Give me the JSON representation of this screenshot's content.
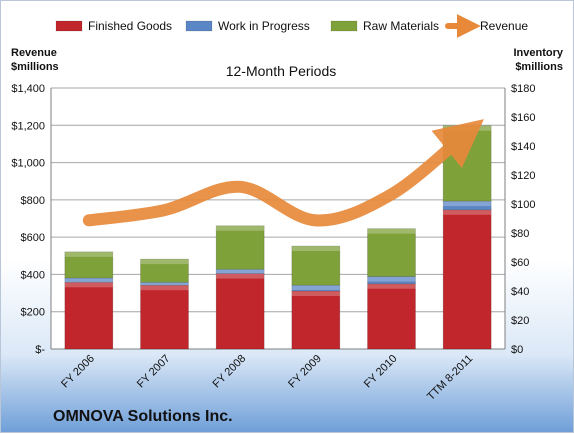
{
  "chart_data": {
    "type": "bar",
    "title": "12-Month Periods",
    "subtitle": "OMNOVA Solutions Inc.",
    "categories": [
      "FY 2006",
      "FY 2007",
      "FY 2008",
      "FY 2009",
      "FY 2010",
      "TTM 8-2011"
    ],
    "series": [
      {
        "name": "Finished Goods",
        "type": "bar",
        "stack": "inventory",
        "axis": "right",
        "color": "#c0262b",
        "values": [
          46,
          44,
          52,
          40,
          45,
          96
        ]
      },
      {
        "name": "Work in Progress",
        "type": "bar",
        "stack": "inventory",
        "axis": "right",
        "color": "#5b86c5",
        "values": [
          3,
          2,
          3,
          4,
          5,
          6
        ]
      },
      {
        "name": "Raw Materials",
        "type": "bar",
        "stack": "inventory",
        "axis": "right",
        "color": "#7fa13a",
        "values": [
          18,
          16,
          30,
          27,
          33,
          52
        ]
      },
      {
        "name": "Revenue",
        "type": "line",
        "axis": "left",
        "color": "#e8893a",
        "values": [
          690,
          745,
          870,
          690,
          830,
          1160
        ]
      }
    ],
    "left_axis": {
      "label": "Revenue\n$millions",
      "range": [
        0,
        1400
      ],
      "ticks": [
        "$-",
        "$200",
        "$400",
        "$600",
        "$800",
        "$1,000",
        "$1,200",
        "$1,400"
      ]
    },
    "right_axis": {
      "label": "Inventory\n$millions",
      "range": [
        0,
        180
      ],
      "ticks": [
        "$0",
        "$20",
        "$40",
        "$60",
        "$80",
        "$100",
        "$120",
        "$140",
        "$160",
        "$180"
      ]
    },
    "legend_position": "top",
    "grid": true
  }
}
